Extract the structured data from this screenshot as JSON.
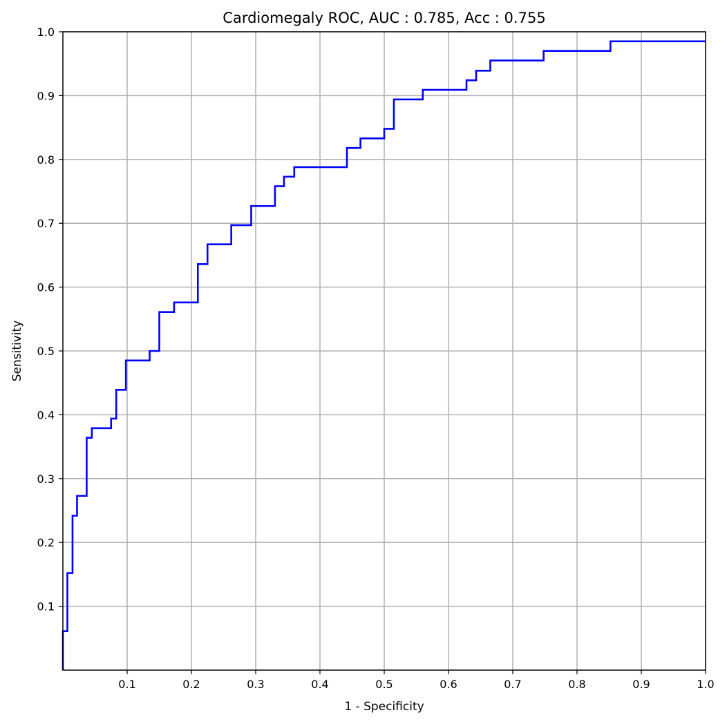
{
  "chart_data": {
    "type": "line",
    "title": "Cardiomegaly ROC, AUC : 0.785, Acc : 0.755",
    "xlabel": "1 - Specificity",
    "ylabel": "Sensitivity",
    "xlim": [
      0,
      1
    ],
    "ylim": [
      0,
      1
    ],
    "grid": true,
    "x_ticks": [
      0.1,
      0.2,
      0.3,
      0.4,
      0.5,
      0.6,
      0.7,
      0.8,
      0.9,
      1.0
    ],
    "x_tick_labels": [
      "0.1",
      "0.2",
      "0.3",
      "0.4",
      "0.5",
      "0.6",
      "0.7",
      "0.8",
      "0.9",
      "1.0"
    ],
    "y_ticks": [
      0.1,
      0.2,
      0.3,
      0.4,
      0.5,
      0.6,
      0.7,
      0.8,
      0.9,
      1.0
    ],
    "y_tick_labels": [
      "0.1",
      "0.2",
      "0.3",
      "0.4",
      "0.5",
      "0.6",
      "0.7",
      "0.8",
      "0.9",
      "1.0"
    ],
    "series": [
      {
        "name": "ROC",
        "color": "#0000ff",
        "x": [
          0.0,
          0.0,
          0.007,
          0.007,
          0.015,
          0.015,
          0.022,
          0.022,
          0.037,
          0.037,
          0.045,
          0.045,
          0.075,
          0.075,
          0.083,
          0.083,
          0.098,
          0.098,
          0.135,
          0.135,
          0.15,
          0.15,
          0.173,
          0.173,
          0.21,
          0.21,
          0.225,
          0.225,
          0.262,
          0.262,
          0.293,
          0.293,
          0.33,
          0.33,
          0.344,
          0.344,
          0.36,
          0.36,
          0.442,
          0.442,
          0.463,
          0.463,
          0.5,
          0.5,
          0.515,
          0.515,
          0.56,
          0.56,
          0.628,
          0.628,
          0.643,
          0.643,
          0.665,
          0.665,
          0.748,
          0.748,
          0.852,
          0.852,
          1.0
        ],
        "y": [
          0.0,
          0.061,
          0.061,
          0.152,
          0.152,
          0.242,
          0.242,
          0.273,
          0.273,
          0.364,
          0.364,
          0.379,
          0.379,
          0.394,
          0.394,
          0.439,
          0.439,
          0.485,
          0.485,
          0.5,
          0.5,
          0.561,
          0.561,
          0.576,
          0.576,
          0.636,
          0.636,
          0.667,
          0.667,
          0.697,
          0.697,
          0.727,
          0.727,
          0.758,
          0.758,
          0.773,
          0.773,
          0.788,
          0.788,
          0.818,
          0.818,
          0.833,
          0.833,
          0.848,
          0.848,
          0.894,
          0.894,
          0.909,
          0.909,
          0.924,
          0.924,
          0.939,
          0.939,
          0.955,
          0.955,
          0.97,
          0.97,
          0.985,
          0.985
        ]
      }
    ]
  }
}
